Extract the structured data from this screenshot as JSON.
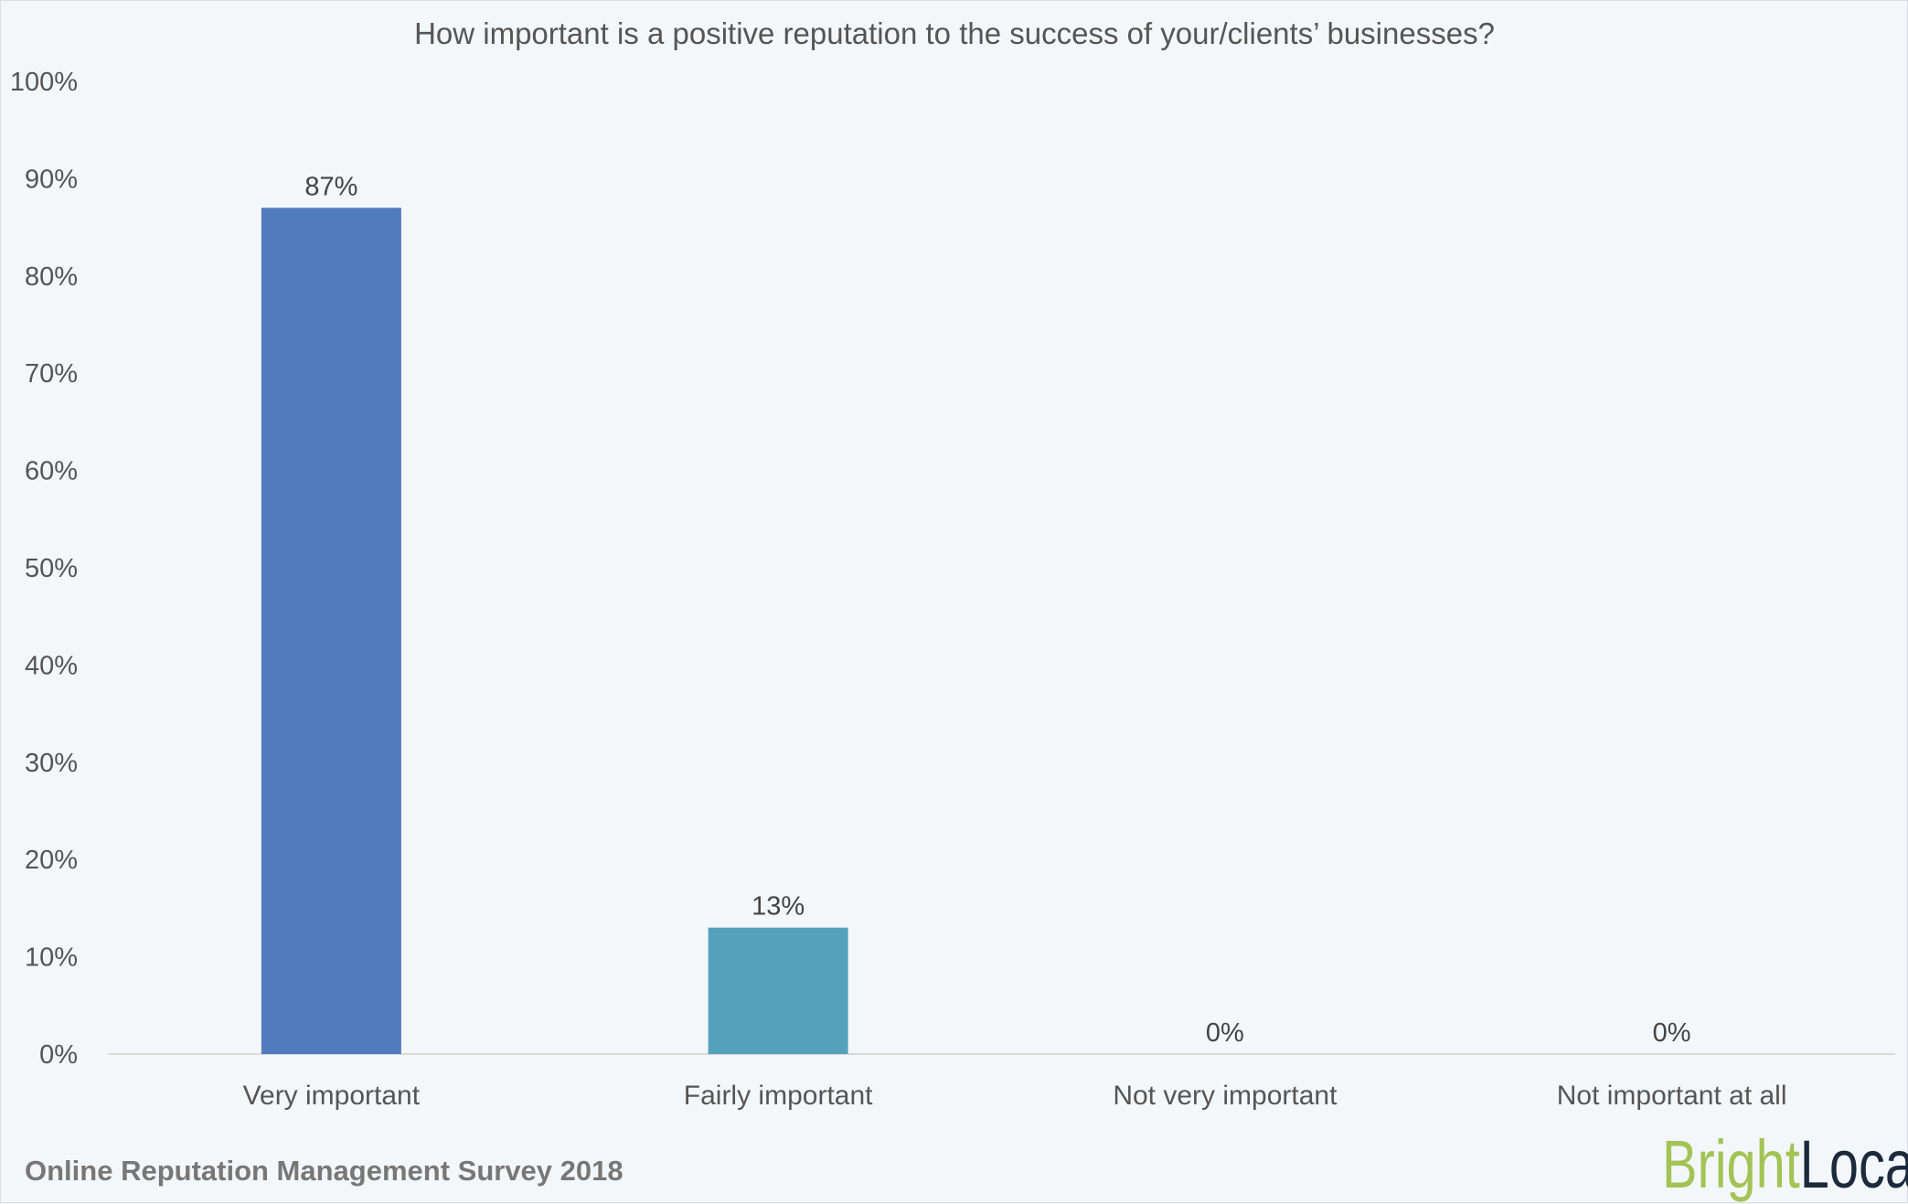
{
  "chart_data": {
    "type": "bar",
    "title": "How important is a positive reputation to the success of your/clients’ businesses?",
    "categories": [
      "Very important",
      "Fairly important",
      "Not very important",
      "Not important at all"
    ],
    "values": [
      87,
      13,
      0,
      0
    ],
    "data_labels": [
      "87%",
      "13%",
      "0%",
      "0%"
    ],
    "colors": [
      "#527bbd",
      "#55a1bb",
      "#55a1bb",
      "#55a1bb"
    ],
    "ylim": [
      0,
      100
    ],
    "yticks": [
      "0%",
      "10%",
      "20%",
      "30%",
      "40%",
      "50%",
      "60%",
      "70%",
      "80%",
      "90%",
      "100%"
    ],
    "xlabel": "",
    "ylabel": "",
    "grid": false,
    "legend": "none"
  },
  "footer": "Online Reputation Management Survey 2018",
  "logo": {
    "part1": "Bright",
    "part2": "Local",
    "color1": "#a3c355",
    "color2": "#1b2a3c"
  }
}
